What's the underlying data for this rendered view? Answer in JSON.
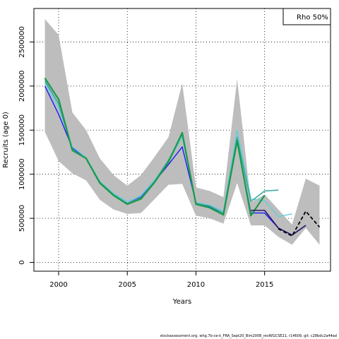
{
  "chart_data": {
    "type": "line",
    "title": "",
    "xlabel": "Years",
    "ylabel": "Recruits (age 0)",
    "xlim": [
      1998.2,
      2019.8
    ],
    "ylim": [
      -100000,
      2880000
    ],
    "x_ticks": [
      2000,
      2005,
      2010,
      2015
    ],
    "x_tick_labels": [
      "2000",
      "2005",
      "2010",
      "2015"
    ],
    "y_ticks": [
      0,
      500000,
      1000000,
      1500000,
      2000000,
      2500000
    ],
    "y_tick_labels": [
      "0",
      "500000",
      "1000000",
      "1500000",
      "2000000",
      "2500000"
    ],
    "grid": true,
    "legend": {
      "position": "top-right",
      "text": "Rho 50%"
    },
    "band": {
      "x": [
        1999,
        2000,
        2001,
        2002,
        2003,
        2004,
        2005,
        2006,
        2007,
        2008,
        2009,
        2010,
        2011,
        2012,
        2013,
        2014,
        2015,
        2016,
        2017,
        2018,
        2019
      ],
      "upper": [
        2760000,
        2580000,
        1700000,
        1500000,
        1180000,
        990000,
        870000,
        990000,
        1200000,
        1420000,
        2030000,
        850000,
        810000,
        740000,
        2080000,
        680000,
        770000,
        600000,
        430000,
        950000,
        870000
      ],
      "lower": [
        1480000,
        1150000,
        1010000,
        930000,
        710000,
        600000,
        550000,
        560000,
        720000,
        880000,
        890000,
        530000,
        500000,
        440000,
        900000,
        420000,
        420000,
        290000,
        200000,
        390000,
        200000
      ]
    },
    "series": [
      {
        "color": "#1a1aff",
        "width": 1.4,
        "dash": "",
        "x": [
          1999,
          2000,
          2001,
          2002,
          2003,
          2004,
          2005,
          2006,
          2007,
          2008,
          2009,
          2010,
          2011,
          2012,
          2013,
          2014,
          2015,
          2016,
          2017,
          2018
        ],
        "y": [
          2000000,
          1680000,
          1300000,
          1180000,
          910000,
          760000,
          670000,
          740000,
          920000,
          1110000,
          1310000,
          680000,
          630000,
          560000,
          1370000,
          560000,
          560000,
          390000,
          310000,
          420000
        ]
      },
      {
        "color": "#66ccdd",
        "width": 1.4,
        "dash": "",
        "x": [
          1999,
          2000,
          2001,
          2002,
          2003,
          2004,
          2005,
          2006,
          2007,
          2008,
          2009,
          2010,
          2011,
          2012,
          2013,
          2014,
          2015,
          2016,
          2017
        ],
        "y": [
          2040000,
          1760000,
          1310000,
          1190000,
          920000,
          780000,
          690000,
          760000,
          940000,
          1140000,
          1420000,
          680000,
          650000,
          580000,
          1500000,
          720000,
          700000,
          520000,
          550000
        ]
      },
      {
        "color": "#3aaa9a",
        "width": 1.6,
        "dash": "",
        "x": [
          1999,
          2000,
          2001,
          2002,
          2003,
          2004,
          2005,
          2006,
          2007,
          2008,
          2009,
          2010,
          2011,
          2012,
          2013,
          2014,
          2015,
          2016
        ],
        "y": [
          2060000,
          1800000,
          1280000,
          1180000,
          910000,
          770000,
          670000,
          730000,
          920000,
          1160000,
          1450000,
          670000,
          640000,
          560000,
          1420000,
          690000,
          810000,
          820000
        ]
      },
      {
        "color": "#1a9a4a",
        "width": 2.2,
        "dash": "",
        "x": [
          1999,
          2000,
          2001,
          2002,
          2003,
          2004,
          2005,
          2006,
          2007,
          2008,
          2009,
          2010,
          2011,
          2012,
          2013,
          2014,
          2015
        ],
        "y": [
          2090000,
          1850000,
          1270000,
          1180000,
          900000,
          760000,
          660000,
          720000,
          910000,
          1140000,
          1470000,
          660000,
          620000,
          540000,
          1380000,
          530000,
          760000
        ]
      },
      {
        "color": "#2a1a6a",
        "width": 1.6,
        "dash": "",
        "x": [
          2014,
          2015,
          2016,
          2017,
          2018
        ],
        "y": [
          590000,
          590000,
          390000,
          310000,
          420000
        ]
      },
      {
        "color": "#000000",
        "width": 1.8,
        "dash": "5,3",
        "x": [
          2016,
          2017,
          2018,
          2019
        ],
        "y": [
          380000,
          300000,
          580000,
          400000
        ]
      }
    ]
  },
  "footer": "stockassessment.org, whg.7b-ce-k_FRA_Sept20_Bim2008_revWGCSE21, r14609, git: c28bdc2a44ad"
}
